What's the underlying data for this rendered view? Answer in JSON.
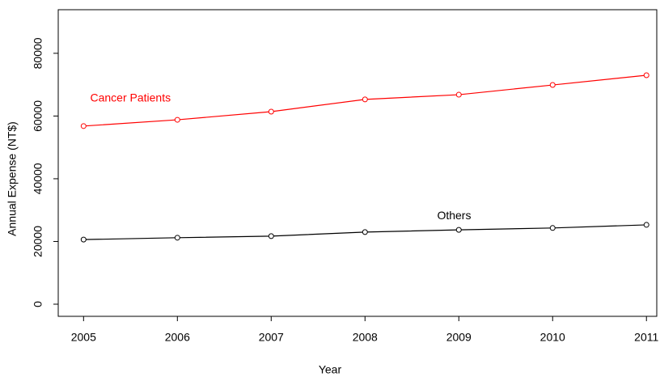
{
  "chart_data": {
    "type": "line",
    "x": [
      2005,
      2006,
      2007,
      2008,
      2009,
      2010,
      2011
    ],
    "series": [
      {
        "name": "Cancer Patients",
        "color": "#ff0000",
        "values": [
          56800,
          58800,
          61400,
          65300,
          66800,
          69900,
          73000
        ]
      },
      {
        "name": "Others",
        "color": "#000000",
        "values": [
          20600,
          21200,
          21700,
          23000,
          23700,
          24300,
          25300
        ]
      }
    ],
    "xlabel": "Year",
    "ylabel": "Annual Expense (NT$)",
    "xlim": [
      2004.73,
      2011.11
    ],
    "ylim": [
      -3870,
      93900
    ],
    "xticks": [
      2005,
      2006,
      2007,
      2008,
      2009,
      2010,
      2011
    ],
    "yticks": [
      0,
      20000,
      40000,
      60000,
      80000
    ]
  }
}
